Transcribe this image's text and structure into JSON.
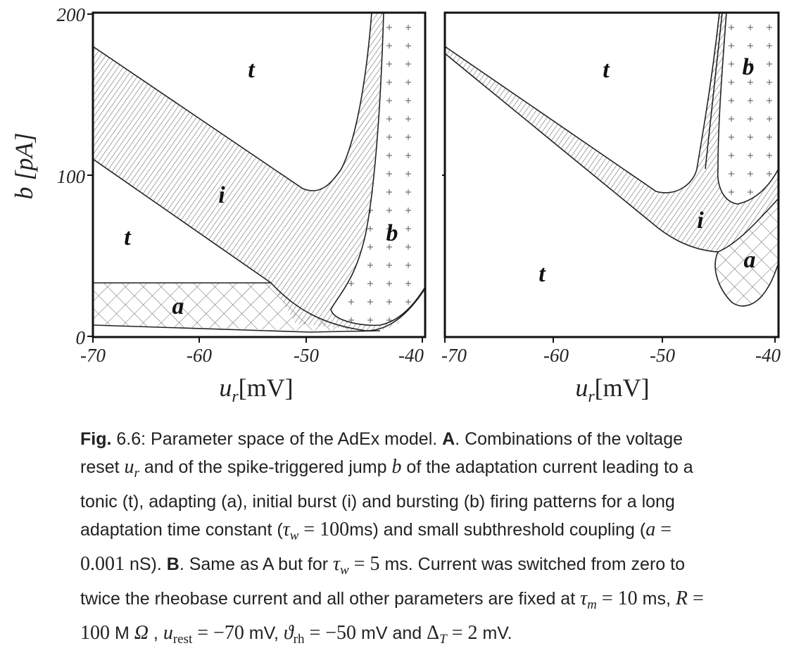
{
  "figure": {
    "panels": [
      {
        "id": "A",
        "x_ticks": [
          "-70",
          "-60",
          "-50",
          "-40"
        ],
        "y_ticks": [
          "0",
          "100",
          "200"
        ],
        "region_labels": [
          "t",
          "t",
          "i",
          "a",
          "b"
        ]
      },
      {
        "id": "B",
        "x_ticks": [
          "-70",
          "-60",
          "-50",
          "-40"
        ],
        "region_labels": [
          "t",
          "t",
          "i",
          "a",
          "b"
        ]
      }
    ],
    "y_axis_label": "b [pA]",
    "x_axis_label_sym": "u",
    "x_axis_label_sub": "r",
    "x_axis_label_unit": "[mV]"
  },
  "caption": {
    "fig_label": "Fig.",
    "fig_number": " 6.6: Parameter space of the AdEx model. ",
    "a_label": "A",
    "p1": ". Combinations of the voltage reset ",
    "p2": " and of the spike-triggered jump ",
    "p3": " of the adaptation current leading to a tonic (t), adapting (a), initial burst (i) and bursting (b) firing patterns for a long adaptation time constant (",
    "p4": "ms) and small subthreshold coupling (",
    "p5": " nS). ",
    "b_label": "B",
    "p6": ". Same as A but for ",
    "p7": " ms. Current was switched from zero to twice the rheobase current and all other parameters are fixed at ",
    "p8": " ms, ",
    "p9": " M ",
    "p10": " , ",
    "p11": " mV, ",
    "p12": " mV and ",
    "p13": " mV.",
    "math": {
      "ur": "u",
      "ur_sub": "r",
      "b": "b",
      "tau_w1": "τ",
      "tau_w1_sub": "w",
      "tau_w1_val": " = 100",
      "a_eq": "a",
      "a_val": " = 0.001",
      "tau_w2": "τ",
      "tau_w2_sub": "w",
      "tau_w2_val": " = 5",
      "tau_m": "τ",
      "tau_m_sub": "m",
      "tau_m_val": " = 10",
      "R": "R",
      "R_val": " = 100",
      "omega": "Ω",
      "urest": "u",
      "urest_sub": "rest",
      "urest_val": " = −70",
      "theta": "ϑ",
      "theta_sub": "rh",
      "theta_val": " = −50",
      "delta": "Δ",
      "delta_sub": "T",
      "delta_val": " = 2"
    }
  }
}
